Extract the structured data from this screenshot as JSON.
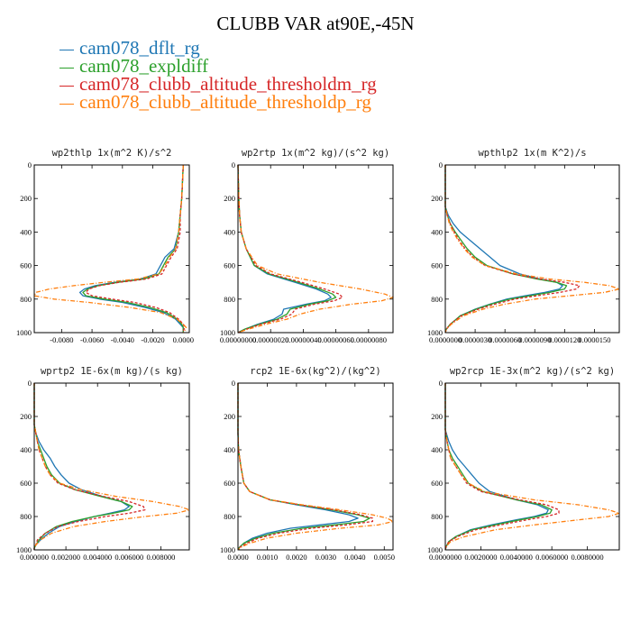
{
  "title": "CLUBB VAR at90E,-45N",
  "legend": [
    {
      "label": "cam078_dflt_rg",
      "color": "#1f77b4"
    },
    {
      "label": "cam078_expldiff",
      "color": "#2ca02c"
    },
    {
      "label": "cam078_clubb_altitude_thresholdm_rg",
      "color": "#d62728"
    },
    {
      "label": "cam078_clubb_altitude_thresholdp_rg",
      "color": "#ff7f0e"
    }
  ],
  "chart_data": [
    {
      "type": "line",
      "title": "wp2thlp  1x(m^2 K)/s^2",
      "ylim": [
        0,
        1000
      ],
      "xlim": [
        -0.0098,
        0.0004
      ],
      "yticks": [
        "0",
        "200",
        "400",
        "600",
        "800",
        "1000"
      ],
      "xticks": [
        {
          "v": -0.008,
          "label": "-0.0080"
        },
        {
          "v": -0.006,
          "label": "-0.0060"
        },
        {
          "v": -0.004,
          "label": "-0.0040"
        },
        {
          "v": -0.002,
          "label": "-0.0020"
        },
        {
          "v": 0.0,
          "label": "0.0000"
        }
      ],
      "y": [
        0,
        200,
        300,
        400,
        500,
        550,
        600,
        650,
        680,
        700,
        720,
        740,
        760,
        780,
        800,
        820,
        850,
        880,
        920,
        950,
        970,
        990,
        1000
      ],
      "series": [
        {
          "name": "cam078_dflt_rg",
          "values": [
            0,
            -0.0001,
            -0.0002,
            -0.0003,
            -0.0006,
            -0.0012,
            -0.0015,
            -0.0018,
            -0.0028,
            -0.0045,
            -0.0058,
            -0.0065,
            -0.0068,
            -0.0066,
            -0.0055,
            -0.004,
            -0.0025,
            -0.0013,
            -0.0005,
            -0.0002,
            0,
            0,
            0
          ]
        },
        {
          "name": "cam078_expldiff",
          "values": [
            0,
            -0.0001,
            -0.0002,
            -0.0003,
            -0.0005,
            -0.001,
            -0.0013,
            -0.0016,
            -0.0026,
            -0.0043,
            -0.0056,
            -0.0063,
            -0.0066,
            -0.0064,
            -0.0052,
            -0.0037,
            -0.0022,
            -0.0011,
            -0.0004,
            -0.0001,
            0,
            0,
            0
          ]
        },
        {
          "name": "cam078_clubb_altitude_thresholdm_rg",
          "values": [
            0,
            -0.0001,
            -0.0002,
            -0.0002,
            -0.0004,
            -0.0008,
            -0.0011,
            -0.0014,
            -0.0024,
            -0.0042,
            -0.0055,
            -0.0062,
            -0.0064,
            -0.006,
            -0.0047,
            -0.0032,
            -0.0018,
            -0.0009,
            -0.0003,
            0,
            0.0001,
            0,
            0
          ]
        },
        {
          "name": "cam078_clubb_altitude_thresholdp_rg",
          "values": [
            0,
            -0.0001,
            -0.0002,
            -0.0003,
            -0.0005,
            -0.0009,
            -0.0012,
            -0.0016,
            -0.003,
            -0.0052,
            -0.0072,
            -0.0088,
            -0.0097,
            -0.0098,
            -0.0085,
            -0.0062,
            -0.0035,
            -0.0015,
            -0.0004,
            0,
            0.0002,
            0.0001,
            0
          ]
        }
      ]
    },
    {
      "type": "line",
      "title": "wp2rtp  1x(m^2 kg)/(s^2 kg)",
      "ylim": [
        0,
        1000
      ],
      "xlim": [
        0,
        9.5e-07
      ],
      "yticks": [
        "0",
        "200",
        "400",
        "600",
        "800",
        "1000"
      ],
      "xticks": [
        {
          "v": 0,
          "label": "0.00000000"
        },
        {
          "v": 2e-07,
          "label": "0.00000020"
        },
        {
          "v": 4e-07,
          "label": "0.00000040"
        },
        {
          "v": 6e-07,
          "label": "0.00000060"
        },
        {
          "v": 8e-07,
          "label": "0.00000080"
        }
      ],
      "y": [
        0,
        200,
        300,
        400,
        500,
        600,
        650,
        700,
        740,
        770,
        790,
        810,
        830,
        860,
        890,
        920,
        950,
        980,
        1000
      ],
      "series": [
        {
          "name": "cam078_dflt_rg",
          "values": [
            0,
            5e-09,
            1e-08,
            2e-08,
            5e-08,
            1e-07,
            1.8e-07,
            3.5e-07,
            4.8e-07,
            5.5e-07,
            5.7e-07,
            5.3e-07,
            4.2e-07,
            2.8e-07,
            2.7e-07,
            2.2e-07,
            1.2e-07,
            4e-08,
            0
          ]
        },
        {
          "name": "cam078_expldiff",
          "values": [
            0,
            5e-09,
            1e-08,
            2e-08,
            5e-08,
            1e-07,
            1.9e-07,
            3.7e-07,
            5e-07,
            5.8e-07,
            6e-07,
            5.5e-07,
            4.4e-07,
            3.2e-07,
            3e-07,
            2.4e-07,
            1.3e-07,
            4e-08,
            0
          ]
        },
        {
          "name": "cam078_clubb_altitude_thresholdm_rg",
          "values": [
            0,
            5e-09,
            1e-08,
            2e-08,
            5e-08,
            1.1e-07,
            2e-07,
            3.9e-07,
            5.3e-07,
            6.2e-07,
            6.4e-07,
            5.9e-07,
            4.7e-07,
            3.5e-07,
            3.3e-07,
            2.6e-07,
            1.4e-07,
            5e-08,
            0
          ]
        },
        {
          "name": "cam078_clubb_altitude_thresholdp_rg",
          "values": [
            0,
            5e-09,
            1e-08,
            2e-08,
            5e-08,
            1.2e-07,
            2.4e-07,
            5e-07,
            7.5e-07,
            9e-07,
            9.5e-07,
            8.8e-07,
            7e-07,
            5e-07,
            3.8e-07,
            3e-07,
            1.7e-07,
            6e-08,
            0
          ]
        }
      ]
    },
    {
      "type": "line",
      "title": "wpthlp2  1x(m K^2)/s",
      "ylim": [
        0,
        1000
      ],
      "xlim": [
        0,
        1.75e-05
      ],
      "yticks": [
        "0",
        "200",
        "400",
        "600",
        "800",
        "1000"
      ],
      "xticks": [
        {
          "v": 0,
          "label": "0.0000000"
        },
        {
          "v": 3e-06,
          "label": "0.0000030"
        },
        {
          "v": 6e-06,
          "label": "0.0000060"
        },
        {
          "v": 9e-06,
          "label": "0.0000090"
        },
        {
          "v": 1.2e-05,
          "label": "0.0000120"
        },
        {
          "v": 1.5e-05,
          "label": "0.0000150"
        }
      ],
      "y": [
        0,
        250,
        300,
        350,
        400,
        450,
        500,
        550,
        600,
        650,
        680,
        700,
        720,
        740,
        760,
        780,
        800,
        830,
        860,
        900,
        950,
        980,
        1000
      ],
      "series": [
        {
          "name": "cam078_dflt_rg",
          "values": [
            0,
            0,
            3e-07,
            8e-07,
            1.5e-06,
            2.5e-06,
            3.5e-06,
            4.5e-06,
            5.5e-06,
            7.5e-06,
            9.5e-06,
            1.12e-05,
            1.18e-05,
            1.15e-05,
            1e-05,
            8e-06,
            6.2e-06,
            4.5e-06,
            3e-06,
            1.5e-06,
            5e-07,
            1e-07,
            0
          ]
        },
        {
          "name": "cam078_expldiff",
          "values": [
            0,
            0,
            2e-07,
            5e-07,
            1e-06,
            1.6e-06,
            2.2e-06,
            3e-06,
            4.2e-06,
            6.8e-06,
            9.2e-06,
            1.12e-05,
            1.22e-05,
            1.2e-05,
            1.05e-05,
            8.5e-06,
            6.5e-06,
            4.6e-06,
            3.1e-06,
            1.5e-06,
            5e-07,
            1e-07,
            0
          ]
        },
        {
          "name": "cam078_clubb_altitude_thresholdm_rg",
          "values": [
            0,
            0,
            2e-07,
            5e-07,
            9e-07,
            1.4e-06,
            2e-06,
            2.8e-06,
            4e-06,
            6.8e-06,
            9.5e-06,
            1.2e-05,
            1.35e-05,
            1.32e-05,
            1.15e-05,
            9.2e-06,
            7e-06,
            5e-06,
            3.3e-06,
            1.6e-06,
            5e-07,
            1e-07,
            0
          ]
        },
        {
          "name": "cam078_clubb_altitude_thresholdp_rg",
          "values": [
            0,
            0,
            2e-07,
            4e-07,
            8e-07,
            1.3e-06,
            1.9e-06,
            2.7e-06,
            4e-06,
            7.2e-06,
            1.05e-05,
            1.4e-05,
            1.65e-05,
            1.75e-05,
            1.6e-05,
            1.25e-05,
            9e-06,
            6e-06,
            3.8e-06,
            1.8e-06,
            6e-07,
            1e-07,
            0
          ]
        }
      ]
    },
    {
      "type": "line",
      "title": "wprtp2  1E-6x(m kg)/(s kg)",
      "ylim": [
        0,
        1000
      ],
      "xlim": [
        0,
        0.0098
      ],
      "yticks": [
        "0",
        "200",
        "400",
        "600",
        "800",
        "1000"
      ],
      "xticks": [
        {
          "v": 0,
          "label": "0.000000"
        },
        {
          "v": 0.002,
          "label": "0.002000"
        },
        {
          "v": 0.004,
          "label": "0.004000"
        },
        {
          "v": 0.006,
          "label": "0.006000"
        },
        {
          "v": 0.008,
          "label": "0.008000"
        }
      ],
      "y": [
        0,
        250,
        300,
        350,
        400,
        450,
        500,
        550,
        600,
        640,
        680,
        710,
        740,
        760,
        780,
        800,
        830,
        860,
        900,
        940,
        970,
        990,
        1000
      ],
      "series": [
        {
          "name": "cam078_dflt_rg",
          "values": [
            0,
            0,
            0.0001,
            0.0003,
            0.0006,
            0.001,
            0.0013,
            0.0017,
            0.0022,
            0.003,
            0.0043,
            0.0055,
            0.006,
            0.0057,
            0.0048,
            0.0038,
            0.0026,
            0.0016,
            0.0009,
            0.0004,
            0.0001,
            0,
            0
          ]
        },
        {
          "name": "cam078_expldiff",
          "values": [
            0,
            0,
            0.0001,
            0.0002,
            0.0004,
            0.0006,
            0.0008,
            0.0011,
            0.0016,
            0.0026,
            0.0042,
            0.0055,
            0.0062,
            0.006,
            0.005,
            0.0038,
            0.0024,
            0.0014,
            0.0007,
            0.0003,
            0.0001,
            0,
            0
          ]
        },
        {
          "name": "cam078_clubb_altitude_thresholdm_rg",
          "values": [
            0,
            0,
            0.0001,
            0.0002,
            0.0003,
            0.0005,
            0.0007,
            0.001,
            0.0015,
            0.0026,
            0.0044,
            0.006,
            0.0069,
            0.007,
            0.006,
            0.0045,
            0.0028,
            0.0015,
            0.0007,
            0.0002,
            0.0001,
            0,
            0
          ]
        },
        {
          "name": "cam078_clubb_altitude_thresholdp_rg",
          "values": [
            0,
            0,
            0.0001,
            0.0002,
            0.0003,
            0.0005,
            0.0007,
            0.001,
            0.0016,
            0.003,
            0.0052,
            0.0075,
            0.0092,
            0.0098,
            0.009,
            0.007,
            0.0045,
            0.0025,
            0.0011,
            0.0004,
            0.0001,
            0,
            0
          ]
        }
      ]
    },
    {
      "type": "line",
      "title": "rcp2  1E-6x(kg^2)/(kg^2)",
      "ylim": [
        0,
        1000
      ],
      "xlim": [
        0,
        0.0053
      ],
      "yticks": [
        "0",
        "200",
        "400",
        "600",
        "800",
        "1000"
      ],
      "xticks": [
        {
          "v": 0,
          "label": "0.0000"
        },
        {
          "v": 0.001,
          "label": "0.0010"
        },
        {
          "v": 0.002,
          "label": "0.0020"
        },
        {
          "v": 0.003,
          "label": "0.0030"
        },
        {
          "v": 0.004,
          "label": "0.0040"
        },
        {
          "v": 0.005,
          "label": "0.0050"
        }
      ],
      "y": [
        0,
        300,
        400,
        500,
        600,
        650,
        700,
        730,
        760,
        790,
        810,
        830,
        850,
        870,
        900,
        930,
        960,
        985,
        1000
      ],
      "series": [
        {
          "name": "cam078_dflt_rg",
          "values": [
            0,
            0,
            2e-05,
            0.0001,
            0.0002,
            0.0004,
            0.0011,
            0.002,
            0.003,
            0.0038,
            0.0041,
            0.0038,
            0.0028,
            0.0018,
            0.001,
            0.0005,
            0.0002,
            5e-05,
            0
          ]
        },
        {
          "name": "cam078_expldiff",
          "values": [
            0,
            0,
            2e-05,
            0.0001,
            0.0002,
            0.0004,
            0.0011,
            0.0021,
            0.0032,
            0.0041,
            0.0045,
            0.0043,
            0.0033,
            0.0022,
            0.0012,
            0.0006,
            0.0002,
            5e-05,
            0
          ]
        },
        {
          "name": "cam078_clubb_altitude_thresholdm_rg",
          "values": [
            0,
            0,
            2e-05,
            0.0001,
            0.0002,
            0.0004,
            0.0011,
            0.0021,
            0.0033,
            0.0042,
            0.0046,
            0.0046,
            0.0037,
            0.0025,
            0.0014,
            0.0007,
            0.0003,
            6e-05,
            0
          ]
        },
        {
          "name": "cam078_clubb_altitude_thresholdp_rg",
          "values": [
            0,
            0,
            2e-05,
            0.0001,
            0.0002,
            0.0004,
            0.0011,
            0.0022,
            0.0035,
            0.0046,
            0.0051,
            0.0053,
            0.0048,
            0.0035,
            0.002,
            0.001,
            0.0004,
            0.0001,
            0
          ]
        }
      ]
    },
    {
      "type": "line",
      "title": "wp2rcp  1E-3x(m^2 kg)/(s^2 kg)",
      "ylim": [
        0,
        1000
      ],
      "xlim": [
        0,
        0.0098
      ],
      "yticks": [
        "0",
        "200",
        "400",
        "600",
        "800",
        "1000"
      ],
      "xticks": [
        {
          "v": 0,
          "label": "0.0000000"
        },
        {
          "v": 0.002,
          "label": "0.0020000"
        },
        {
          "v": 0.004,
          "label": "0.0040000"
        },
        {
          "v": 0.006,
          "label": "0.0060000"
        },
        {
          "v": 0.008,
          "label": "0.0080000"
        }
      ],
      "y": [
        0,
        280,
        350,
        400,
        450,
        500,
        550,
        600,
        650,
        700,
        730,
        760,
        780,
        800,
        820,
        850,
        880,
        920,
        950,
        980,
        1000
      ],
      "series": [
        {
          "name": "cam078_dflt_rg",
          "values": [
            0,
            0,
            0.0002,
            0.0004,
            0.0007,
            0.0011,
            0.0015,
            0.0019,
            0.0025,
            0.004,
            0.0052,
            0.0058,
            0.0057,
            0.005,
            0.004,
            0.0026,
            0.0014,
            0.0006,
            0.0002,
            5e-05,
            0
          ]
        },
        {
          "name": "cam078_expldiff",
          "values": [
            0,
            0,
            0.0001,
            0.0002,
            0.0004,
            0.0007,
            0.001,
            0.0013,
            0.0021,
            0.004,
            0.0054,
            0.006,
            0.0059,
            0.0052,
            0.0042,
            0.0028,
            0.0015,
            0.0006,
            0.0002,
            5e-05,
            0
          ]
        },
        {
          "name": "cam078_clubb_altitude_thresholdm_rg",
          "values": [
            0,
            0,
            0.0001,
            0.0002,
            0.0003,
            0.0006,
            0.0009,
            0.0012,
            0.002,
            0.0042,
            0.0057,
            0.0064,
            0.0064,
            0.0057,
            0.0046,
            0.0031,
            0.0017,
            0.0007,
            0.0002,
            5e-05,
            0
          ]
        },
        {
          "name": "cam078_clubb_altitude_thresholdp_rg",
          "values": [
            0,
            0,
            0.0001,
            0.0002,
            0.0003,
            0.0006,
            0.0009,
            0.0013,
            0.0022,
            0.005,
            0.0075,
            0.0092,
            0.0098,
            0.0092,
            0.0075,
            0.005,
            0.0028,
            0.0011,
            0.0003,
            5e-05,
            0
          ]
        }
      ]
    }
  ]
}
